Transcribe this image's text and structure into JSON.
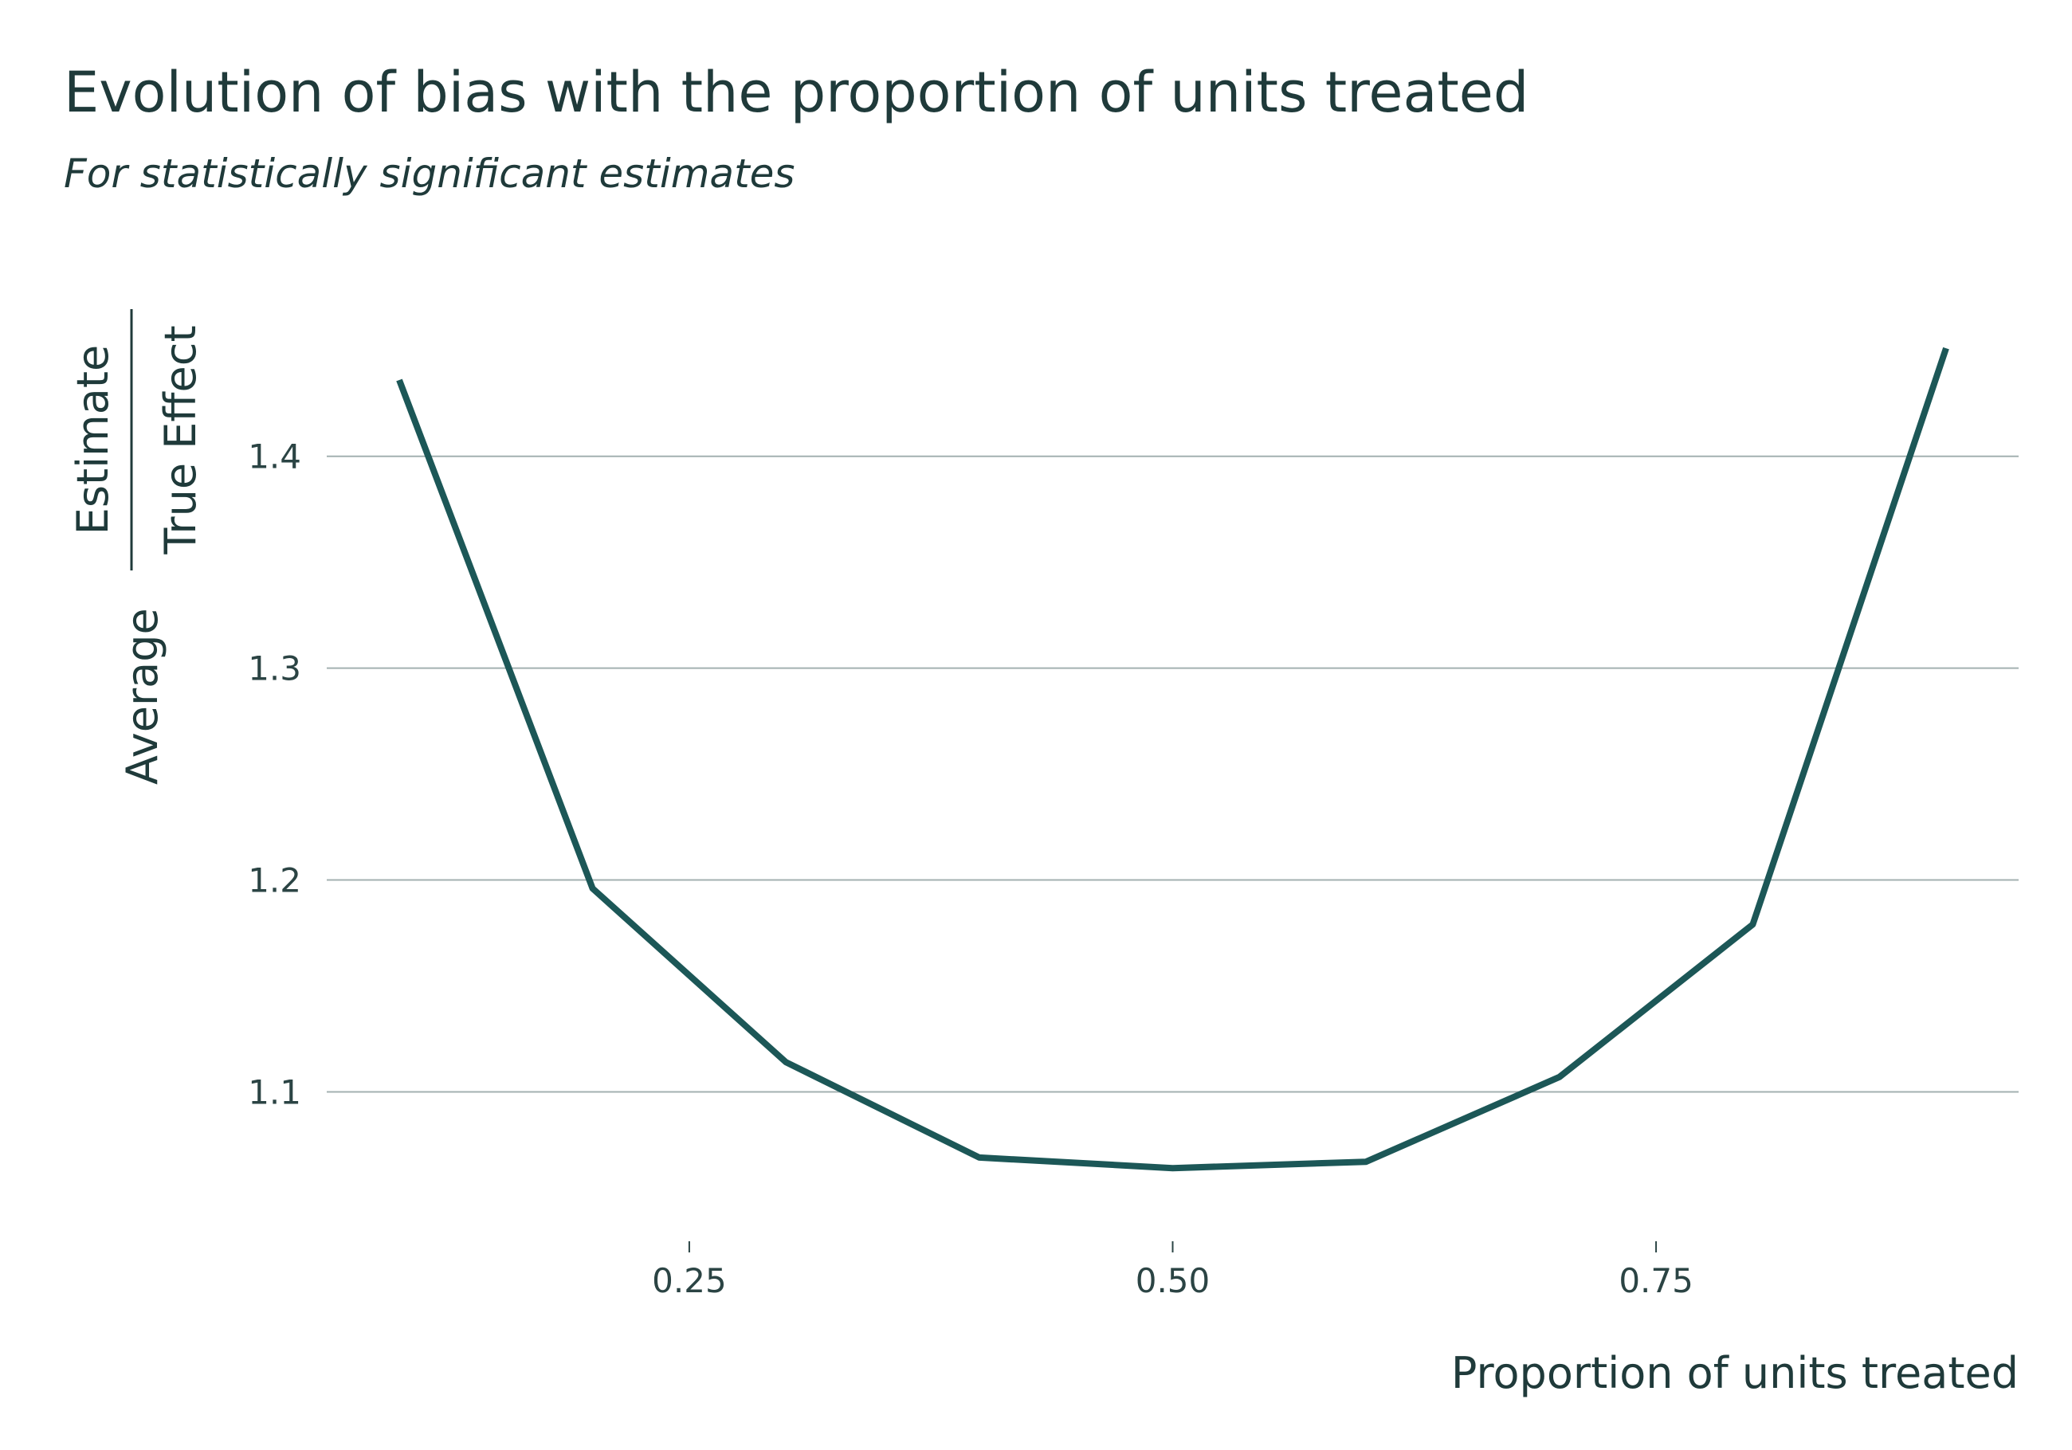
{
  "chart_data": {
    "type": "line",
    "title": "Evolution of bias with the proportion of units treated",
    "subtitle": "For statistically significant estimates",
    "xlabel": "Proportion of units treated",
    "ylabel": {
      "prefix": "Average",
      "numerator": "Estimate",
      "denominator": "True Effect"
    },
    "x": [
      0.1,
      0.2,
      0.3,
      0.4,
      0.5,
      0.6,
      0.7,
      0.8,
      0.9
    ],
    "series": [
      {
        "values": [
          1.436,
          1.196,
          1.114,
          1.069,
          1.064,
          1.067,
          1.107,
          1.179,
          1.451
        ]
      }
    ],
    "xlim": [
      0.0625,
      0.9375
    ],
    "ylim": [
      1.04,
      1.48
    ],
    "x_ticks": [
      0.25,
      0.5,
      0.75
    ],
    "x_tick_labels": [
      "0.25",
      "0.50",
      "0.75"
    ],
    "y_ticks": [
      1.1,
      1.2,
      1.3,
      1.4
    ],
    "y_tick_labels": [
      "1.1",
      "1.2",
      "1.3",
      "1.4"
    ],
    "grid": "horizontal major",
    "legend": "none",
    "line_color": "#1c5757"
  }
}
